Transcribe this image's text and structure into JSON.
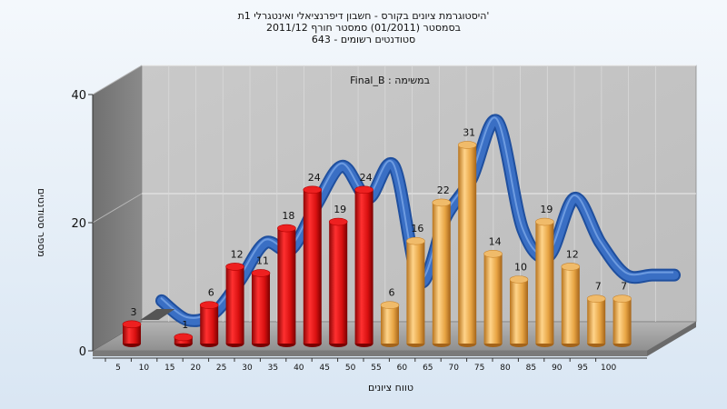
{
  "chart_data": {
    "type": "bar",
    "title_lines": [
      "היסטוגרמת ציונים בקורס - חשבון דיפרנציאלי ואינטגרלי 1ת'",
      "בסמסטר  (01/2011)  סמסטר חורף 2011/12",
      "סטודנטים רשומים - 643"
    ],
    "subtitle": "Final_B : במשימה",
    "xlabel": "טווח ציונים",
    "ylabel": "מספר סטודנטים",
    "categories": [
      "5",
      "10",
      "15",
      "20",
      "25",
      "30",
      "35",
      "40",
      "45",
      "50",
      "55",
      "60",
      "65",
      "70",
      "75",
      "80",
      "85",
      "90",
      "95",
      "100"
    ],
    "values": [
      3,
      0,
      1,
      6,
      12,
      11,
      18,
      24,
      19,
      24,
      6,
      16,
      22,
      31,
      14,
      10,
      19,
      12,
      7,
      7
    ],
    "data_labels": [
      "3",
      "",
      "1",
      "6",
      "12",
      "11",
      "18",
      "24",
      "19",
      "24",
      "6",
      "16",
      "22",
      "31",
      "14",
      "10",
      "19",
      "12",
      "7",
      "7"
    ],
    "yticks": [
      "0",
      "20",
      "40"
    ],
    "ylim": [
      0,
      40
    ],
    "grid": true,
    "bar_colors": {
      "fail": "#dd1414",
      "pass": "#e8a640"
    },
    "wave_color": "#3a6fc4"
  }
}
